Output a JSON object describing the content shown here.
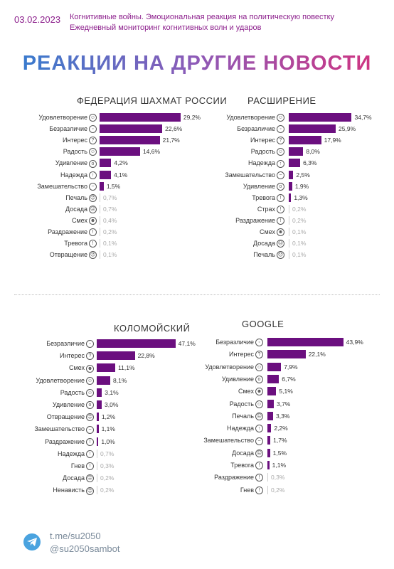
{
  "header": {
    "date": "03.02.2023",
    "line1": "Когнитивные войны. Эмоциональная реакция на политическую повестку",
    "line2": "Ежедневный мониторинг когнитивных волн и ударов",
    "title": "РЕАКЦИИ НА ДРУГИЕ НОВОСТИ"
  },
  "footer": {
    "link": "t.me/su2050",
    "bot": "@su2050sambot"
  },
  "colors": {
    "bar": "#6b0f7f",
    "accent": "#8c1f8c",
    "telegram": "#4aa3df"
  },
  "chart_data": [
    {
      "type": "bar",
      "orientation": "horizontal",
      "title": "ФЕДЕРАЦИЯ ШАХМАТ РОССИИ",
      "categories": [
        "Удовлетворение",
        "Безразличие",
        "Интерес",
        "Радость",
        "Удивление",
        "Надежда",
        "Замешательство",
        "Печаль",
        "Досада",
        "Смех",
        "Раздражение",
        "Тревога",
        "Отвращение"
      ],
      "labels": [
        "29,2%",
        "22,6%",
        "21,7%",
        "14,6%",
        "4,2%",
        "4,1%",
        "1,5%",
        "0,7%",
        "0,7%",
        "0,4%",
        "0,2%",
        "0,1%",
        "0,1%"
      ],
      "values": [
        29.2,
        22.6,
        21.7,
        14.6,
        4.2,
        4.1,
        1.5,
        0.7,
        0.7,
        0.4,
        0.2,
        0.1,
        0.1
      ]
    },
    {
      "type": "bar",
      "orientation": "horizontal",
      "title": "РАСШИРЕНИЕ",
      "categories": [
        "Удовлетворение",
        "Безразличие",
        "Интерес",
        "Радость",
        "Надежда",
        "Замешательство",
        "Удивление",
        "Тревога",
        "Страх",
        "Раздражение",
        "Смех",
        "Досада",
        "Печаль"
      ],
      "labels": [
        "34,7%",
        "25,9%",
        "17,9%",
        "8,0%",
        "6,3%",
        "2,5%",
        "1,9%",
        "1,3%",
        "0,2%",
        "0,2%",
        "0,1%",
        "0,1%",
        "0,1%"
      ],
      "values": [
        34.7,
        25.9,
        17.9,
        8.0,
        6.3,
        2.5,
        1.9,
        1.3,
        0.2,
        0.2,
        0.1,
        0.1,
        0.1
      ]
    },
    {
      "type": "bar",
      "orientation": "horizontal",
      "title": "КОЛОМОЙСКИЙ",
      "categories": [
        "Безразличие",
        "Интерес",
        "Смех",
        "Удовлетворение",
        "Радость",
        "Удивление",
        "Отвращение",
        "Замешательство",
        "Раздражение",
        "Надежда",
        "Гнев",
        "Досада",
        "Ненависть"
      ],
      "labels": [
        "47,1%",
        "22,8%",
        "11,1%",
        "8,1%",
        "3,1%",
        "3,0%",
        "1,2%",
        "1,1%",
        "1,0%",
        "0,7%",
        "0,3%",
        "0,2%",
        "0,2%"
      ],
      "values": [
        47.1,
        22.8,
        11.1,
        8.1,
        3.1,
        3.0,
        1.2,
        1.1,
        1.0,
        0.7,
        0.3,
        0.2,
        0.2
      ]
    },
    {
      "type": "bar",
      "orientation": "horizontal",
      "title": "GOOGLE",
      "categories": [
        "Безразличие",
        "Интерес",
        "Удовлетворение",
        "Удивление",
        "Смех",
        "Радость",
        "Печаль",
        "Надежда",
        "Замешательство",
        "Досада",
        "Тревога",
        "Раздражение",
        "Гнев"
      ],
      "labels": [
        "43,9%",
        "22,1%",
        "7,9%",
        "6,7%",
        "5,1%",
        "3,7%",
        "3,3%",
        "2,2%",
        "1,7%",
        "1,5%",
        "1,1%",
        "0,3%",
        "0,2%"
      ],
      "values": [
        43.9,
        22.1,
        7.9,
        6.7,
        5.1,
        3.7,
        3.3,
        2.2,
        1.7,
        1.5,
        1.1,
        0.3,
        0.2
      ]
    }
  ]
}
